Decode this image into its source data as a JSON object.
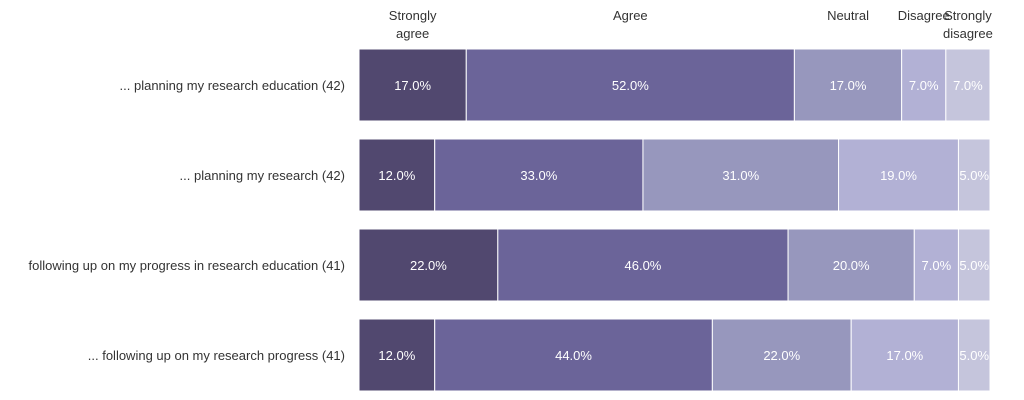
{
  "colors": {
    "Strongly agree": "#51486f",
    "Agree": "#6b6499",
    "Neutral": "#9797bd",
    "Disagree": "#b2b1d5",
    "Strongly disagree": "#c5c5dc"
  },
  "chart_data": {
    "type": "bar",
    "orientation": "horizontal",
    "stacked": true,
    "title": "",
    "xlabel": "",
    "ylabel": "",
    "xlim": [
      0,
      100
    ],
    "grid": false,
    "legend": "top",
    "columns": [
      {
        "name": "Strongly agree",
        "header_lines": [
          "Strongly",
          "agree"
        ]
      },
      {
        "name": "Agree",
        "header_lines": [
          "Agree"
        ]
      },
      {
        "name": "Neutral",
        "header_lines": [
          "Neutral"
        ]
      },
      {
        "name": "Disagree",
        "header_lines": [
          "Disagree"
        ]
      },
      {
        "name": "Strongly disagree",
        "header_lines": [
          "Strongly",
          "disagree"
        ]
      }
    ],
    "categories": [
      "... planning my research education (42)",
      "... planning my research (42)",
      "following up on my progress in research education (41)",
      "... following up on my research progress (41)"
    ],
    "series": [
      {
        "name": "Strongly agree",
        "values": [
          17.0,
          12.0,
          22.0,
          12.0
        ],
        "labels": [
          "17.0%",
          "12.0%",
          "22.0%",
          "12.0%"
        ]
      },
      {
        "name": "Agree",
        "values": [
          52.0,
          33.0,
          46.0,
          44.0
        ],
        "labels": [
          "52.0%",
          "33.0%",
          "46.0%",
          "44.0%"
        ]
      },
      {
        "name": "Neutral",
        "values": [
          17.0,
          31.0,
          20.0,
          22.0
        ],
        "labels": [
          "17.0%",
          "31.0%",
          "20.0%",
          "22.0%"
        ]
      },
      {
        "name": "Disagree",
        "values": [
          7.0,
          19.0,
          7.0,
          17.0
        ],
        "labels": [
          "7.0%",
          "19.0%",
          "7.0%",
          "17.0%"
        ]
      },
      {
        "name": "Strongly disagree",
        "values": [
          7.0,
          5.0,
          5.0,
          5.0
        ],
        "labels": [
          "7.0%",
          "5.0%",
          "5.0%",
          "5.0%"
        ]
      }
    ]
  }
}
